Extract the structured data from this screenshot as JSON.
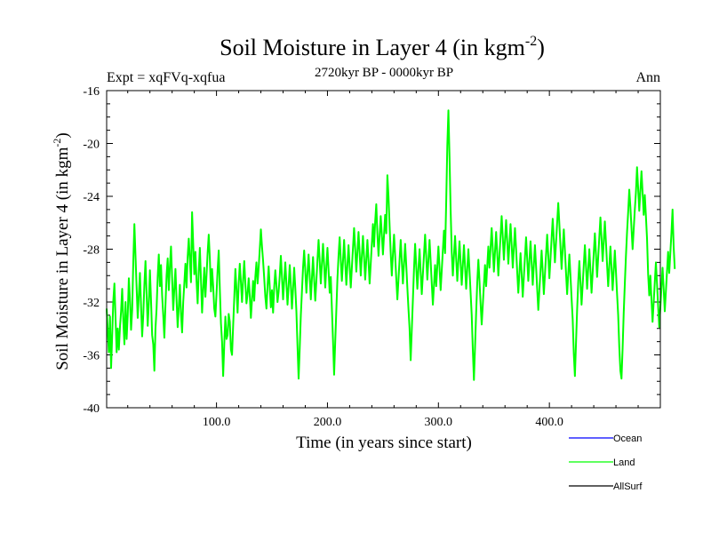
{
  "chart_data": {
    "type": "line",
    "title_main": "Soil Moisture in Layer 4 (in kgm",
    "title_sup": "-2",
    "title_close": ")",
    "subtitle": "2720kyr BP - 0000kyr BP",
    "expt_label": "Expt = xqFVq-xqfua",
    "season_label": "Ann",
    "xlabel": "Time (in years since start)",
    "ylabel_main": "Soil Moisture in Layer 4 (in kgm",
    "ylabel_sup": "-2",
    "ylabel_close": ")",
    "xlim": [
      1,
      500
    ],
    "ylim": [
      -40,
      -16
    ],
    "x_ticks": [
      100,
      200,
      300,
      400
    ],
    "x_tick_labels": [
      "100.0",
      "200.0",
      "300.0",
      "400.0"
    ],
    "y_ticks": [
      -16,
      -20,
      -24,
      -28,
      -32,
      -36,
      -40
    ],
    "y_tick_labels": [
      "-16",
      "-20",
      "-24",
      "-28",
      "-32",
      "-36",
      "-40"
    ],
    "legend": [
      {
        "name": "Ocean",
        "color": "#0000ff"
      },
      {
        "name": "Land",
        "color": "#00ff00"
      },
      {
        "name": "AllSurf",
        "color": "#000000"
      }
    ],
    "series": [
      {
        "name": "Land",
        "color": "#00ff00",
        "x_start": 1,
        "x_step": 1,
        "values": [
          -32.5,
          -34.2,
          -35.8,
          -33.1,
          -37.0,
          -34.5,
          -31.9,
          -30.6,
          -33.2,
          -35.8,
          -34.0,
          -35.6,
          -33.9,
          -32.7,
          -31.0,
          -33.4,
          -35.2,
          -32.0,
          -34.8,
          -33.0,
          -30.2,
          -31.8,
          -34.1,
          -32.6,
          -29.0,
          -26.1,
          -28.5,
          -30.9,
          -33.2,
          -31.5,
          -29.8,
          -32.3,
          -34.6,
          -33.0,
          -30.7,
          -28.9,
          -31.4,
          -33.8,
          -32.1,
          -29.6,
          -31.9,
          -34.5,
          -35.2,
          -37.2,
          -34.0,
          -32.5,
          -30.1,
          -28.4,
          -30.8,
          -29.2,
          -31.5,
          -33.0,
          -34.7,
          -32.2,
          -30.0,
          -28.7,
          -31.1,
          -29.3,
          -27.8,
          -30.2,
          -32.6,
          -31.0,
          -29.5,
          -31.8,
          -33.9,
          -32.4,
          -30.7,
          -32.9,
          -34.3,
          -32.0,
          -30.6,
          -29.1,
          -30.9,
          -28.6,
          -27.2,
          -28.8,
          -30.5,
          -25.2,
          -27.6,
          -29.9,
          -28.2,
          -30.4,
          -32.1,
          -29.7,
          -27.9,
          -30.3,
          -32.8,
          -31.0,
          -29.4,
          -31.6,
          -30.0,
          -28.3,
          -26.9,
          -28.7,
          -31.2,
          -29.5,
          -30.8,
          -32.5,
          -33.1,
          -31.4,
          -29.6,
          -28.1,
          -31.0,
          -33.6,
          -35.0,
          -37.6,
          -35.2,
          -33.1,
          -34.8,
          -34.5,
          -32.9,
          -33.5,
          -35.6,
          -36.0,
          -33.8,
          -31.7,
          -29.5,
          -31.0,
          -32.8,
          -30.6,
          -29.1,
          -30.5,
          -32.0,
          -30.3,
          -28.9,
          -30.6,
          -32.1,
          -31.4,
          -30.2,
          -31.5,
          -33.2,
          -31.8,
          -30.4,
          -31.9,
          -30.1,
          -29.0,
          -30.6,
          -29.4,
          -28.0,
          -26.5,
          -27.8,
          -28.9,
          -30.2,
          -31.6,
          -32.5,
          -30.8,
          -29.3,
          -30.9,
          -32.4,
          -31.1,
          -32.8,
          -30.9,
          -29.6,
          -30.7,
          -32.0,
          -31.2,
          -30.0,
          -28.5,
          -30.1,
          -31.8,
          -30.4,
          -29.0,
          -30.6,
          -32.2,
          -30.8,
          -29.2,
          -30.7,
          -32.5,
          -31.0,
          -29.4,
          -30.9,
          -32.7,
          -35.3,
          -37.8,
          -35.5,
          -33.0,
          -31.2,
          -29.4,
          -28.1,
          -29.6,
          -31.3,
          -29.8,
          -28.4,
          -30.0,
          -31.8,
          -30.2,
          -28.6,
          -30.3,
          -31.9,
          -30.4,
          -28.8,
          -27.3,
          -28.9,
          -30.6,
          -29.1,
          -27.6,
          -29.2,
          -30.9,
          -29.3,
          -27.9,
          -29.6,
          -31.3,
          -30.1,
          -32.5,
          -34.9,
          -37.5,
          -35.0,
          -32.6,
          -30.2,
          -28.5,
          -27.1,
          -28.8,
          -30.4,
          -28.9,
          -27.3,
          -29.0,
          -30.7,
          -29.2,
          -27.7,
          -29.3,
          -30.9,
          -29.4,
          -27.9,
          -26.4,
          -28.0,
          -29.7,
          -28.2,
          -26.7,
          -28.3,
          -30.0,
          -28.5,
          -27.0,
          -28.6,
          -30.3,
          -28.8,
          -27.3,
          -28.9,
          -30.6,
          -29.1,
          -27.6,
          -26.1,
          -27.8,
          -25.9,
          -24.6,
          -26.8,
          -28.5,
          -27.0,
          -25.5,
          -26.9,
          -28.4,
          -26.9,
          -25.4,
          -26.8,
          -22.4,
          -24.0,
          -26.2,
          -28.3,
          -30.0,
          -28.4,
          -26.9,
          -28.5,
          -30.2,
          -31.8,
          -30.3,
          -28.8,
          -27.3,
          -28.9,
          -30.6,
          -29.1,
          -27.6,
          -29.2,
          -30.9,
          -32.5,
          -34.0,
          -36.4,
          -34.1,
          -31.8,
          -29.5,
          -27.6,
          -29.3,
          -31.0,
          -29.5,
          -28.0,
          -29.7,
          -31.4,
          -29.9,
          -28.4,
          -26.9,
          -28.6,
          -30.3,
          -28.8,
          -27.3,
          -28.9,
          -30.6,
          -32.2,
          -30.7,
          -29.2,
          -30.8,
          -29.3,
          -27.8,
          -29.4,
          -31.1,
          -29.6,
          -28.1,
          -26.6,
          -28.3,
          -24.5,
          -20.2,
          -17.5,
          -21.0,
          -25.0,
          -28.2,
          -30.0,
          -28.5,
          -27.0,
          -28.7,
          -30.4,
          -28.9,
          -27.4,
          -29.0,
          -30.7,
          -29.2,
          -27.7,
          -29.3,
          -31.0,
          -29.5,
          -28.0,
          -29.6,
          -31.3,
          -33.0,
          -35.6,
          -37.9,
          -35.4,
          -32.8,
          -30.5,
          -28.8,
          -30.4,
          -32.1,
          -33.7,
          -32.2,
          -30.7,
          -29.2,
          -30.8,
          -29.3,
          -27.8,
          -29.4,
          -27.9,
          -26.4,
          -28.0,
          -29.7,
          -28.2,
          -26.7,
          -28.3,
          -30.0,
          -28.5,
          -27.0,
          -25.5,
          -27.1,
          -28.8,
          -27.3,
          -25.8,
          -27.4,
          -29.1,
          -27.6,
          -26.1,
          -27.7,
          -29.4,
          -27.9,
          -26.4,
          -28.0,
          -29.7,
          -31.3,
          -29.8,
          -28.3,
          -29.9,
          -31.6,
          -30.1,
          -28.6,
          -27.1,
          -28.7,
          -30.4,
          -28.9,
          -27.4,
          -29.0,
          -30.7,
          -29.2,
          -27.7,
          -29.3,
          -31.0,
          -32.6,
          -31.1,
          -29.6,
          -28.1,
          -29.7,
          -31.4,
          -29.9,
          -28.4,
          -26.9,
          -28.5,
          -30.2,
          -28.7,
          -27.2,
          -25.7,
          -27.3,
          -29.0,
          -27.5,
          -26.0,
          -24.5,
          -26.1,
          -27.8,
          -29.5,
          -28.0,
          -26.5,
          -28.1,
          -29.8,
          -31.4,
          -29.9,
          -28.4,
          -30.0,
          -31.7,
          -33.3,
          -35.9,
          -37.6,
          -35.1,
          -32.6,
          -30.5,
          -28.9,
          -30.5,
          -32.2,
          -30.7,
          -29.2,
          -27.7,
          -29.3,
          -31.0,
          -29.5,
          -28.0,
          -29.6,
          -31.3,
          -29.8,
          -28.3,
          -26.8,
          -28.4,
          -30.1,
          -28.6,
          -27.1,
          -25.6,
          -27.2,
          -28.9,
          -27.4,
          -25.9,
          -27.5,
          -29.2,
          -30.8,
          -29.3,
          -27.8,
          -29.4,
          -31.1,
          -29.6,
          -28.1,
          -29.7,
          -31.4,
          -33.0,
          -35.4,
          -37.2,
          -37.8,
          -35.5,
          -32.8,
          -30.6,
          -28.5,
          -26.7,
          -25.2,
          -23.5,
          -24.8,
          -26.4,
          -28.0,
          -26.5,
          -25.0,
          -23.7,
          -21.8,
          -23.4,
          -25.1,
          -23.6,
          -22.1,
          -23.7,
          -25.4,
          -23.9,
          -25.5,
          -27.2,
          -29.9,
          -31.5,
          -30.0,
          -31.8,
          -33.5,
          -32.0,
          -30.5,
          -29.0,
          -30.6,
          -32.3,
          -33.9,
          -32.4,
          -30.9,
          -29.4,
          -31.0,
          -32.7,
          -31.2,
          -29.7,
          -28.2,
          -29.8,
          -28.3,
          -26.8,
          -25.0,
          -27.8,
          -29.5
        ]
      }
    ]
  }
}
